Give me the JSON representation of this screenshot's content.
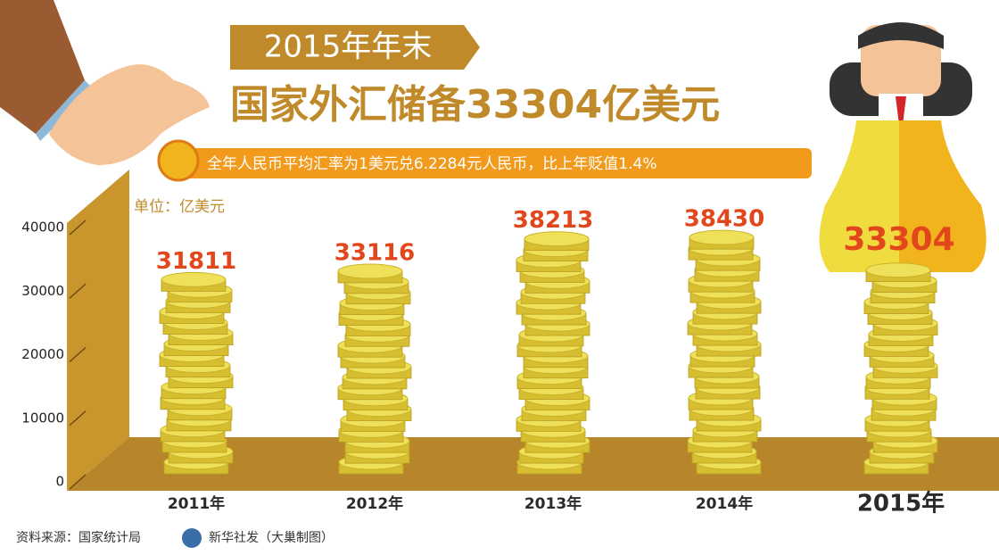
{
  "chart_data": {
    "type": "bar",
    "tag": "2015年年末",
    "title": "国家外汇储备33304亿美元",
    "subtitle": "全年人民币平均汇率为1美元兑6.2284元人民币，比上年贬值1.4%",
    "unit": "单位：亿美元",
    "categories": [
      "2011年",
      "2012年",
      "2013年",
      "2014年",
      "2015年"
    ],
    "values": [
      31811,
      33116,
      38213,
      38430,
      33304
    ],
    "color": "#e8d44a",
    "label_color": "#e2471c",
    "ylim": [
      0,
      40000
    ],
    "yticks": [
      0,
      10000,
      20000,
      30000,
      40000
    ],
    "source": "资料来源：国家统计局",
    "credit": "新华社发（大巢制图）"
  }
}
